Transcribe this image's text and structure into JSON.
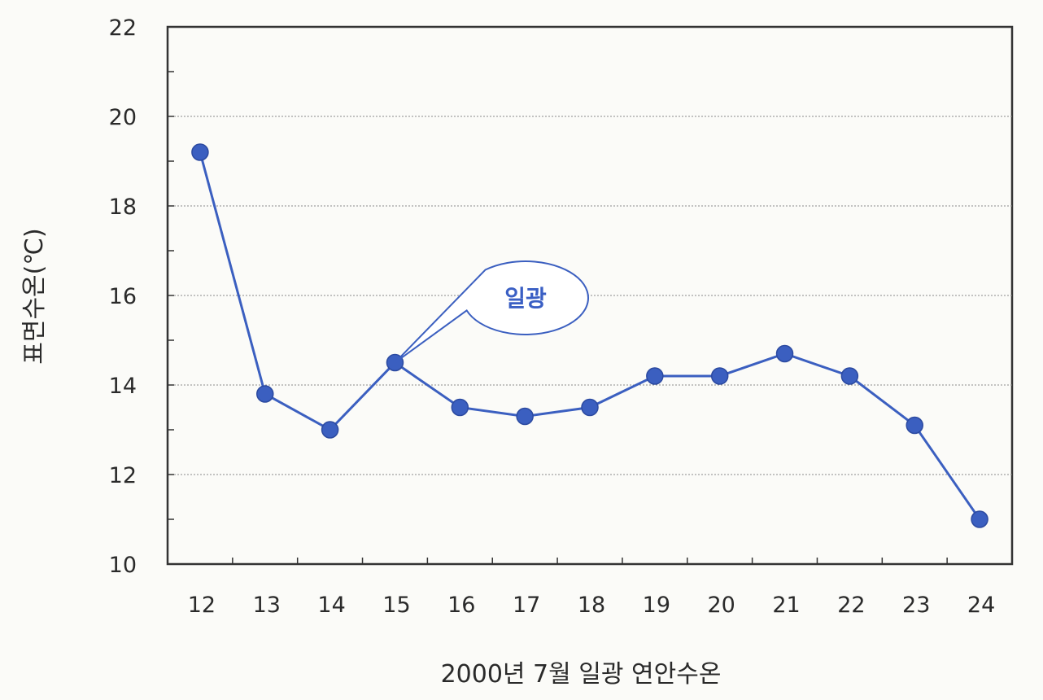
{
  "chart_data": {
    "type": "line",
    "title": "",
    "xlabel": "2000년 7월 일광 연안수온",
    "ylabel": "표면수온(℃)",
    "categories": [
      "12",
      "13",
      "14",
      "15",
      "16",
      "17",
      "18",
      "19",
      "20",
      "21",
      "22",
      "23",
      "24"
    ],
    "series": [
      {
        "values": [
          19.2,
          13.8,
          13.0,
          14.5,
          13.5,
          13.3,
          13.5,
          14.2,
          14.2,
          14.7,
          14.2,
          13.1,
          11.0
        ]
      }
    ],
    "ylim": [
      10,
      22
    ],
    "yticks": [
      "10",
      "12",
      "14",
      "16",
      "18",
      "20",
      "22"
    ],
    "grid": true,
    "annotation": {
      "text": "일광",
      "category": "15"
    },
    "colors": {
      "line": "#3b5fc0",
      "marker": "#3b5fc0",
      "grid": "#8a8a8a",
      "frame": "#333333"
    }
  }
}
